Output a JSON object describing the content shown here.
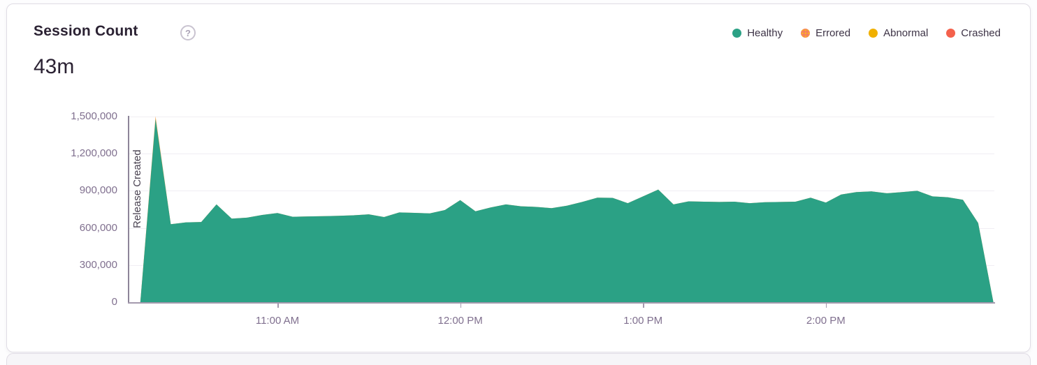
{
  "card": {
    "title": "Session Count",
    "help_icon": "?",
    "total": "43m"
  },
  "legend": {
    "items": [
      {
        "label": "Healthy",
        "color": "#2ba185",
        "style": "solid"
      },
      {
        "label": "Errored",
        "color": "#f4805f",
        "style": "dotted",
        "dot_color": "#fbb51e"
      },
      {
        "label": "Abnormal",
        "color": "#f0b000",
        "style": "solid"
      },
      {
        "label": "Crashed",
        "color": "#f4614c",
        "style": "solid"
      }
    ]
  },
  "release_marker": {
    "label": "Release Created"
  },
  "chart_data": {
    "type": "area",
    "stacked": true,
    "title": "Session Count",
    "xlabel": "",
    "ylabel": "",
    "ylim": [
      0,
      1500000
    ],
    "grid": "horizontal",
    "legend_position": "top-right",
    "x": [
      "10:15 AM",
      "10:20 AM",
      "10:25 AM",
      "10:30 AM",
      "10:35 AM",
      "10:40 AM",
      "10:45 AM",
      "10:50 AM",
      "10:55 AM",
      "11:00 AM",
      "11:05 AM",
      "11:10 AM",
      "11:15 AM",
      "11:20 AM",
      "11:25 AM",
      "11:30 AM",
      "11:35 AM",
      "11:40 AM",
      "11:45 AM",
      "11:50 AM",
      "11:55 AM",
      "12:00 PM",
      "12:05 PM",
      "12:10 PM",
      "12:15 PM",
      "12:20 PM",
      "12:25 PM",
      "12:30 PM",
      "12:35 PM",
      "12:40 PM",
      "12:45 PM",
      "12:50 PM",
      "12:55 PM",
      "1:00 PM",
      "1:05 PM",
      "1:10 PM",
      "1:15 PM",
      "1:20 PM",
      "1:25 PM",
      "1:30 PM",
      "1:35 PM",
      "1:40 PM",
      "1:45 PM",
      "1:50 PM",
      "1:55 PM",
      "2:00 PM",
      "2:05 PM",
      "2:10 PM",
      "2:15 PM",
      "2:20 PM",
      "2:25 PM",
      "2:30 PM",
      "2:35 PM",
      "2:40 PM",
      "2:45 PM",
      "2:50 PM",
      "2:55 PM"
    ],
    "series": [
      {
        "name": "Healthy",
        "color": "#2ba185",
        "values": [
          0,
          1480000,
          630000,
          645000,
          648000,
          790000,
          675000,
          683000,
          705000,
          720000,
          690000,
          693000,
          695000,
          698000,
          702000,
          710000,
          688000,
          725000,
          722000,
          718000,
          745000,
          825000,
          735000,
          765000,
          790000,
          775000,
          770000,
          760000,
          780000,
          810000,
          845000,
          843000,
          800000,
          855000,
          910000,
          790000,
          815000,
          812000,
          810000,
          812000,
          800000,
          808000,
          810000,
          812000,
          845000,
          805000,
          870000,
          890000,
          895000,
          880000,
          890000,
          900000,
          855000,
          848000,
          828000,
          640000,
          0
        ]
      },
      {
        "name": "Errored",
        "color": "#f5a14b",
        "values": [
          0,
          22000,
          0,
          0,
          0,
          0,
          0,
          0,
          0,
          0,
          0,
          0,
          0,
          0,
          0,
          0,
          0,
          0,
          0,
          0,
          0,
          0,
          0,
          0,
          0,
          0,
          0,
          0,
          0,
          0,
          0,
          0,
          0,
          0,
          0,
          0,
          0,
          0,
          0,
          0,
          0,
          0,
          0,
          0,
          0,
          0,
          0,
          0,
          0,
          0,
          0,
          0,
          0,
          0,
          0,
          0,
          0
        ]
      }
    ],
    "y_ticks": [
      {
        "label": "0",
        "value": 0
      },
      {
        "label": "300,000",
        "value": 300000
      },
      {
        "label": "600,000",
        "value": 600000
      },
      {
        "label": "900,000",
        "value": 900000
      },
      {
        "label": "1,200,000",
        "value": 1200000
      },
      {
        "label": "1,500,000",
        "value": 1500000
      }
    ],
    "x_ticks": [
      {
        "label": "11:00 AM",
        "index": 9
      },
      {
        "label": "12:00 PM",
        "index": 21
      },
      {
        "label": "1:00 PM",
        "index": 33
      },
      {
        "label": "2:00 PM",
        "index": 45
      }
    ],
    "annotations": [
      {
        "label": "Release Created",
        "x": "10:11 AM",
        "orientation": "vertical"
      }
    ]
  }
}
